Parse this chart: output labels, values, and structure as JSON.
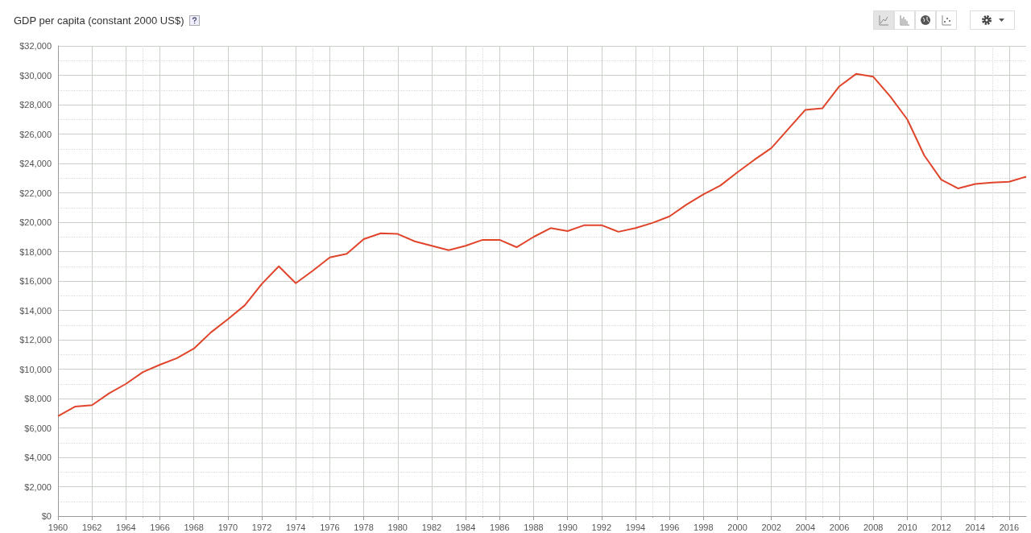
{
  "chart_data": {
    "type": "line",
    "title": "GDP per capita (constant 2000 US$)",
    "x": [
      1960,
      1961,
      1962,
      1963,
      1964,
      1965,
      1966,
      1967,
      1968,
      1969,
      1970,
      1971,
      1972,
      1973,
      1974,
      1975,
      1976,
      1977,
      1978,
      1979,
      1980,
      1981,
      1982,
      1983,
      1984,
      1985,
      1986,
      1987,
      1988,
      1989,
      1990,
      1991,
      1992,
      1993,
      1994,
      1995,
      1996,
      1997,
      1998,
      1999,
      2000,
      2001,
      2002,
      2003,
      2004,
      2005,
      2006,
      2007,
      2008,
      2009,
      2010,
      2011,
      2012,
      2013,
      2014,
      2015,
      2016,
      2017
    ],
    "series": [
      {
        "color": "#e0452b",
        "values": [
          6800,
          7450,
          7550,
          8350,
          9000,
          9800,
          10300,
          10750,
          11400,
          12500,
          13400,
          14350,
          15800,
          17000,
          15850,
          16700,
          17600,
          17850,
          18850,
          19250,
          19200,
          18700,
          18400,
          18100,
          18400,
          18800,
          18800,
          18300,
          19000,
          19600,
          19400,
          19800,
          19800,
          19350,
          19600,
          19950,
          20400,
          21200,
          21900,
          22500,
          23400,
          24250,
          25050,
          26350,
          27650,
          27750,
          29250,
          30100,
          29900,
          28550,
          27000,
          24550,
          22900,
          22300,
          22600,
          22700,
          22750,
          23100
        ]
      }
    ],
    "xlim": [
      1960,
      2017
    ],
    "xticks": [
      1960,
      1962,
      1964,
      1966,
      1968,
      1970,
      1972,
      1974,
      1976,
      1978,
      1980,
      1982,
      1984,
      1986,
      1988,
      1990,
      1992,
      1994,
      1996,
      1998,
      2000,
      2002,
      2004,
      2006,
      2008,
      2010,
      2012,
      2014,
      2016
    ],
    "ylim": [
      0,
      32000
    ],
    "yticks": [
      {
        "value": 0,
        "label": "$0"
      },
      {
        "value": 2000,
        "label": "$2,000"
      },
      {
        "value": 4000,
        "label": "$4,000"
      },
      {
        "value": 6000,
        "label": "$6,000"
      },
      {
        "value": 8000,
        "label": "$8,000"
      },
      {
        "value": 10000,
        "label": "$10,000"
      },
      {
        "value": 12000,
        "label": "$12,000"
      },
      {
        "value": 14000,
        "label": "$14,000"
      },
      {
        "value": 16000,
        "label": "$16,000"
      },
      {
        "value": 18000,
        "label": "$18,000"
      },
      {
        "value": 20000,
        "label": "$20,000"
      },
      {
        "value": 22000,
        "label": "$22,000"
      },
      {
        "value": 24000,
        "label": "$24,000"
      },
      {
        "value": 26000,
        "label": "$26,000"
      },
      {
        "value": 28000,
        "label": "$28,000"
      },
      {
        "value": 30000,
        "label": "$30,000"
      },
      {
        "value": 32000,
        "label": "$32,000"
      }
    ],
    "grid": true,
    "marker": "none",
    "line_style": "solid"
  }
}
